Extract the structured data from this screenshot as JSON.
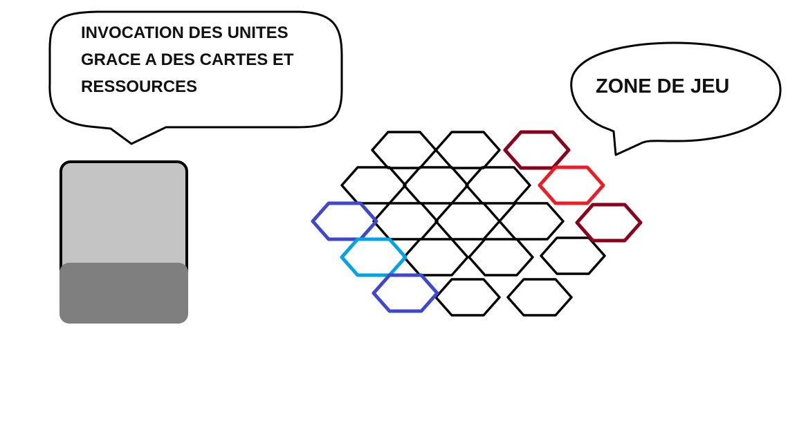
{
  "summon_bubble": {
    "lines": [
      "INVOCATION DES UNITES",
      "GRACE A DES CARTES ET",
      "RESSOURCES"
    ]
  },
  "zone_bubble": {
    "text": "ZONE DE JEU"
  },
  "colors": {
    "outline": "#000000",
    "card_top": "#c3c3c3",
    "card_bottom": "#7f7f7f",
    "hex_default": "#000000",
    "hex_dark_red": "#88001b",
    "hex_red": "#ed1c24",
    "hex_indigo": "#3f48cc",
    "hex_light_blue": "#00a2e8"
  },
  "board": {
    "hexes": [
      {
        "id": "r0c0",
        "color": "hex_default"
      },
      {
        "id": "r0c1",
        "color": "hex_default"
      },
      {
        "id": "r0c2",
        "color": "hex_dark_red"
      },
      {
        "id": "r1c0",
        "color": "hex_default"
      },
      {
        "id": "r1c1",
        "color": "hex_default"
      },
      {
        "id": "r1c2",
        "color": "hex_default"
      },
      {
        "id": "r1c3",
        "color": "hex_red"
      },
      {
        "id": "r2c0",
        "color": "hex_indigo"
      },
      {
        "id": "r2c1",
        "color": "hex_default"
      },
      {
        "id": "r2c2",
        "color": "hex_default"
      },
      {
        "id": "r2c3",
        "color": "hex_default"
      },
      {
        "id": "r2c4",
        "color": "hex_dark_red"
      },
      {
        "id": "r3c0",
        "color": "hex_light_blue"
      },
      {
        "id": "r3c1",
        "color": "hex_default"
      },
      {
        "id": "r3c2",
        "color": "hex_default"
      },
      {
        "id": "r3c3",
        "color": "hex_default"
      },
      {
        "id": "r4c0",
        "color": "hex_indigo"
      },
      {
        "id": "r4c1",
        "color": "hex_default"
      },
      {
        "id": "r4c2",
        "color": "hex_default"
      }
    ]
  }
}
